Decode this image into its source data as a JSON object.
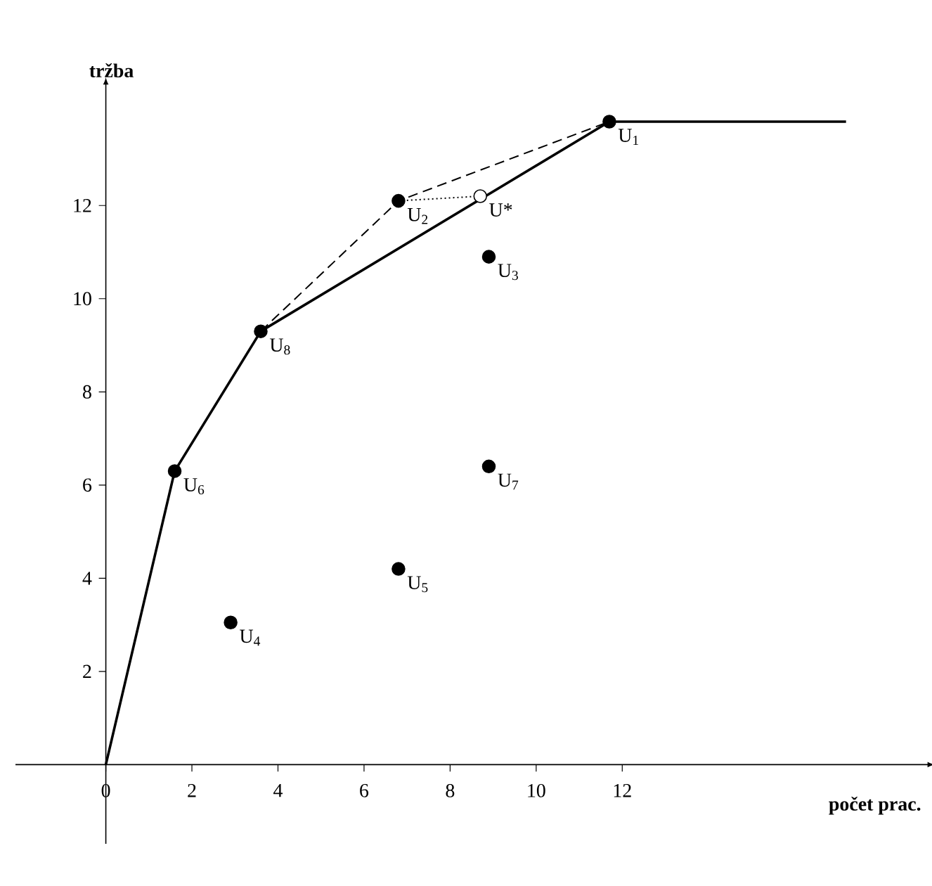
{
  "chart_data": {
    "type": "scatter",
    "xlabel": "**počet prac.**",
    "ylabel": "**tržba**",
    "xlim": [
      -2.1,
      19.1
    ],
    "ylim": [
      -1.7,
      14.6
    ],
    "xticks": [
      0,
      2,
      4,
      6,
      8,
      10,
      12
    ],
    "yticks": [
      2,
      4,
      6,
      8,
      10,
      12
    ],
    "series": [
      {
        "type": "line",
        "color": "#000000",
        "line_style": "solid",
        "marker": "none",
        "x": [
          0,
          1.6,
          3.6,
          11.7,
          17.2
        ],
        "values": [
          0,
          6.3,
          9.3,
          13.8,
          13.8
        ]
      },
      {
        "type": "line",
        "color": "#000000",
        "line_style": "dashed",
        "marker": "none",
        "x": [
          3.6,
          6.8,
          11.7
        ],
        "values": [
          9.3,
          12.1,
          13.8
        ]
      },
      {
        "type": "line",
        "color": "#000000",
        "line_style": "dotted",
        "marker": "none",
        "x": [
          6.8,
          8.7
        ],
        "values": [
          12.1,
          12.2
        ]
      },
      {
        "type": "scatter",
        "color": "#000000",
        "marker": "circle",
        "x": [
          11.7,
          6.8,
          8.9,
          2.9,
          6.8,
          1.6,
          8.9,
          3.6
        ],
        "values": [
          13.8,
          12.1,
          10.9,
          3.05,
          4.2,
          6.3,
          6.4,
          9.3
        ]
      },
      {
        "type": "scatter",
        "color": "#ffffff",
        "marker": "circle",
        "x": [
          8.7
        ],
        "values": [
          12.2
        ]
      }
    ],
    "annotations": [
      {
        "text": "U$_{1}$",
        "x": 11.7,
        "y": 13.8
      },
      {
        "text": "U$_{2}$",
        "x": 6.8,
        "y": 12.1
      },
      {
        "text": "U$_{3}$",
        "x": 8.9,
        "y": 10.9
      },
      {
        "text": "U$_{4}$",
        "x": 2.9,
        "y": 3.05
      },
      {
        "text": "U$_{5}$",
        "x": 6.8,
        "y": 4.2
      },
      {
        "text": "U$_{6}$",
        "x": 1.6,
        "y": 6.3
      },
      {
        "text": "U$_{7}$",
        "x": 8.9,
        "y": 6.4
      },
      {
        "text": "U$_{8}$",
        "x": 3.6,
        "y": 9.3
      },
      {
        "text": "U*",
        "x": 8.7,
        "y": 12.2
      }
    ]
  }
}
